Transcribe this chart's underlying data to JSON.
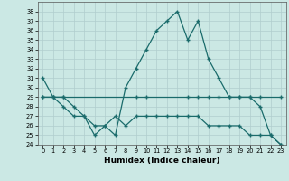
{
  "xlabel": "Humidex (Indice chaleur)",
  "xlim": [
    -0.5,
    23.5
  ],
  "ylim": [
    24,
    39
  ],
  "yticks": [
    24,
    25,
    26,
    27,
    28,
    29,
    30,
    31,
    32,
    33,
    34,
    35,
    36,
    37,
    38
  ],
  "xticks": [
    0,
    1,
    2,
    3,
    4,
    5,
    6,
    7,
    8,
    9,
    10,
    11,
    12,
    13,
    14,
    15,
    16,
    17,
    18,
    19,
    20,
    21,
    22,
    23
  ],
  "background_color": "#cbe8e4",
  "grid_color": "#b0cece",
  "line_color": "#1a6b6b",
  "line1_x": [
    0,
    1,
    2,
    3,
    4,
    5,
    6,
    7,
    8,
    9,
    10,
    11,
    12,
    13,
    14,
    15,
    16,
    17,
    18,
    19,
    20,
    21,
    22,
    23
  ],
  "line1_y": [
    31,
    29,
    29,
    28,
    27,
    25,
    26,
    25,
    30,
    32,
    34,
    36,
    37,
    38,
    35,
    37,
    33,
    31,
    29,
    29,
    29,
    28,
    25,
    24
  ],
  "line2_x": [
    0,
    1,
    2,
    9,
    10,
    14,
    15,
    16,
    17,
    18,
    19,
    20,
    21,
    23
  ],
  "line2_y": [
    29,
    29,
    29,
    29,
    29,
    29,
    29,
    29,
    29,
    29,
    29,
    29,
    29,
    29
  ],
  "line3_x": [
    0,
    1,
    2,
    3,
    4,
    5,
    6,
    7,
    8,
    9,
    10,
    11,
    12,
    13,
    14,
    15,
    16,
    17,
    18,
    19,
    20,
    21,
    22,
    23
  ],
  "line3_y": [
    29,
    29,
    28,
    27,
    27,
    26,
    26,
    27,
    26,
    27,
    27,
    27,
    27,
    27,
    27,
    27,
    26,
    26,
    26,
    26,
    25,
    25,
    25,
    24
  ]
}
